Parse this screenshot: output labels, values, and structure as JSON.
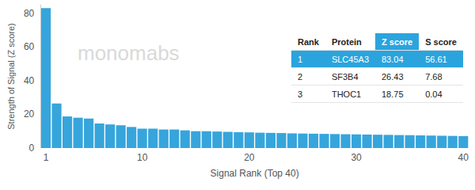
{
  "chart_data": {
    "type": "bar",
    "x_label": "Signal Rank (Top 40)",
    "y_label": "Strength of Signal (Z score)",
    "watermark": "monomabs",
    "categories": [
      "1",
      null,
      null,
      null,
      null,
      null,
      null,
      null,
      null,
      "10",
      null,
      null,
      null,
      null,
      null,
      null,
      null,
      null,
      null,
      "20",
      null,
      null,
      null,
      null,
      null,
      null,
      null,
      null,
      null,
      "30",
      null,
      null,
      null,
      null,
      null,
      null,
      null,
      null,
      null,
      "40"
    ],
    "values": [
      83.04,
      26.43,
      18.75,
      18,
      17.5,
      14.5,
      14,
      13.5,
      12.5,
      11.5,
      11.5,
      11,
      11,
      10.5,
      10,
      10,
      9.8,
      9.6,
      9.4,
      9.3,
      9.1,
      9,
      8.9,
      8.7,
      8.6,
      8.5,
      8.4,
      8.3,
      8.2,
      8.1,
      8,
      7.9,
      7.8,
      7.7,
      7.6,
      7.5,
      7.4,
      7.3,
      7.2,
      7.1
    ],
    "color": "#36a5dc",
    "ylim": [
      0,
      85
    ],
    "yticks": [
      0,
      20,
      40,
      60,
      80
    ],
    "grid": false,
    "table": {
      "columns": [
        "Rank",
        "Protein",
        "Z score",
        "S score"
      ],
      "rows": [
        [
          1,
          "SLC45A3",
          83.04,
          56.61
        ],
        [
          2,
          "SF3B4",
          26.43,
          7.68
        ],
        [
          3,
          "THOC1",
          18.75,
          0.04
        ]
      ]
    }
  }
}
